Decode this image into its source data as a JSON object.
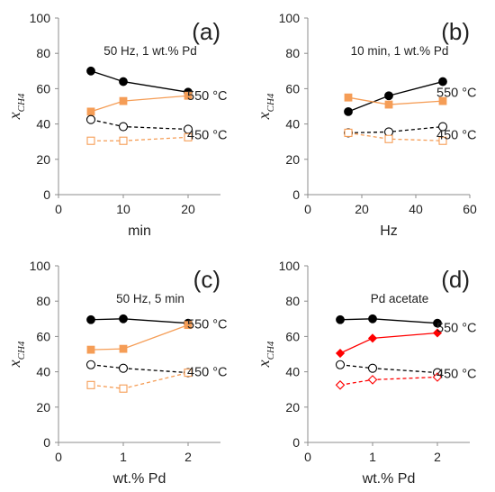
{
  "chart_data": [
    {
      "panel_label": "(a)",
      "type": "line",
      "condition": "50 Hz, 1 wt.% Pd",
      "xlabel": "min",
      "ylabel_main": "x",
      "ylabel_sub": "CH4",
      "xlim": [
        0,
        25
      ],
      "ylim": [
        0,
        100
      ],
      "xticks": [
        0,
        10,
        20
      ],
      "yticks": [
        0,
        20,
        40,
        60,
        80,
        100
      ],
      "temp_labels": [
        {
          "text": "550 °C",
          "y": 56
        },
        {
          "text": "450 °C",
          "y": 34
        }
      ],
      "series": [
        {
          "x": [
            5,
            10,
            20
          ],
          "values": [
            70,
            64,
            58
          ],
          "color": "#000000",
          "marker": "circle",
          "filled": true,
          "dashed": false
        },
        {
          "x": [
            5,
            10,
            20
          ],
          "values": [
            47,
            53,
            56
          ],
          "color": "#F59D56",
          "marker": "square",
          "filled": true,
          "dashed": false
        },
        {
          "x": [
            5,
            10,
            20
          ],
          "values": [
            42.5,
            38.5,
            37
          ],
          "color": "#000000",
          "marker": "circle",
          "filled": false,
          "dashed": true
        },
        {
          "x": [
            5,
            10,
            20
          ],
          "values": [
            30.5,
            30.5,
            32.5
          ],
          "color": "#F59D56",
          "marker": "square",
          "filled": false,
          "dashed": true
        }
      ]
    },
    {
      "panel_label": "(b)",
      "type": "line",
      "condition": "10 min, 1 wt.% Pd",
      "xlabel": "Hz",
      "ylabel_main": "x",
      "ylabel_sub": "CH4",
      "xlim": [
        0,
        60
      ],
      "ylim": [
        0,
        100
      ],
      "xticks": [
        0,
        20,
        40,
        60
      ],
      "yticks": [
        0,
        20,
        40,
        60,
        80,
        100
      ],
      "temp_labels": [
        {
          "text": "550 °C",
          "y": 58
        },
        {
          "text": "450 °C",
          "y": 34
        }
      ],
      "series": [
        {
          "x": [
            15,
            30,
            50
          ],
          "values": [
            47,
            56,
            64
          ],
          "color": "#000000",
          "marker": "circle",
          "filled": true,
          "dashed": false
        },
        {
          "x": [
            15,
            30,
            50
          ],
          "values": [
            55,
            51,
            53
          ],
          "color": "#F59D56",
          "marker": "square",
          "filled": true,
          "dashed": false
        },
        {
          "x": [
            15,
            30,
            50
          ],
          "values": [
            35,
            35.5,
            38.5
          ],
          "color": "#000000",
          "marker": "circle",
          "filled": false,
          "dashed": true
        },
        {
          "x": [
            15,
            30,
            50
          ],
          "values": [
            35,
            31.5,
            30.5
          ],
          "color": "#F59D56",
          "marker": "square",
          "filled": false,
          "dashed": true
        }
      ]
    },
    {
      "panel_label": "(c)",
      "type": "line",
      "condition": "50 Hz, 5 min",
      "xlabel": "wt.% Pd",
      "ylabel_main": "x",
      "ylabel_sub": "CH4",
      "xlim": [
        0,
        2.5
      ],
      "ylim": [
        0,
        100
      ],
      "xticks": [
        0,
        1,
        2
      ],
      "yticks": [
        0,
        20,
        40,
        60,
        80,
        100
      ],
      "temp_labels": [
        {
          "text": "550 °C",
          "y": 67
        },
        {
          "text": "450 °C",
          "y": 40
        }
      ],
      "series": [
        {
          "x": [
            0.5,
            1,
            2
          ],
          "values": [
            69.5,
            70,
            67.5
          ],
          "color": "#000000",
          "marker": "circle",
          "filled": true,
          "dashed": false
        },
        {
          "x": [
            0.5,
            1,
            2
          ],
          "values": [
            52.5,
            53,
            66.5
          ],
          "color": "#F59D56",
          "marker": "square",
          "filled": true,
          "dashed": false
        },
        {
          "x": [
            0.5,
            1,
            2
          ],
          "values": [
            44,
            42,
            39.5
          ],
          "color": "#000000",
          "marker": "circle",
          "filled": false,
          "dashed": true
        },
        {
          "x": [
            0.5,
            1,
            2
          ],
          "values": [
            32.5,
            30.5,
            39.5
          ],
          "color": "#F59D56",
          "marker": "square",
          "filled": false,
          "dashed": true
        }
      ]
    },
    {
      "panel_label": "(d)",
      "type": "line",
      "condition": "Pd acetate",
      "xlabel": "wt.% Pd",
      "ylabel_main": "x",
      "ylabel_sub": "CH4",
      "xlim": [
        0,
        2.5
      ],
      "ylim": [
        0,
        100
      ],
      "xticks": [
        0,
        1,
        2
      ],
      "yticks": [
        0,
        20,
        40,
        60,
        80,
        100
      ],
      "temp_labels": [
        {
          "text": "550 °C",
          "y": 65
        },
        {
          "text": "450 °C",
          "y": 39
        }
      ],
      "series": [
        {
          "x": [
            0.5,
            1,
            2
          ],
          "values": [
            69.5,
            70,
            67.5
          ],
          "color": "#000000",
          "marker": "circle",
          "filled": true,
          "dashed": false
        },
        {
          "x": [
            0.5,
            1,
            2
          ],
          "values": [
            50.5,
            59,
            62
          ],
          "color": "#FF0000",
          "marker": "diamond",
          "filled": true,
          "dashed": false
        },
        {
          "x": [
            0.5,
            1,
            2
          ],
          "values": [
            44,
            42,
            39.5
          ],
          "color": "#000000",
          "marker": "circle",
          "filled": false,
          "dashed": true
        },
        {
          "x": [
            0.5,
            1,
            2
          ],
          "values": [
            32.5,
            35.5,
            37
          ],
          "color": "#FF0000",
          "marker": "diamond",
          "filled": false,
          "dashed": true
        }
      ]
    }
  ]
}
